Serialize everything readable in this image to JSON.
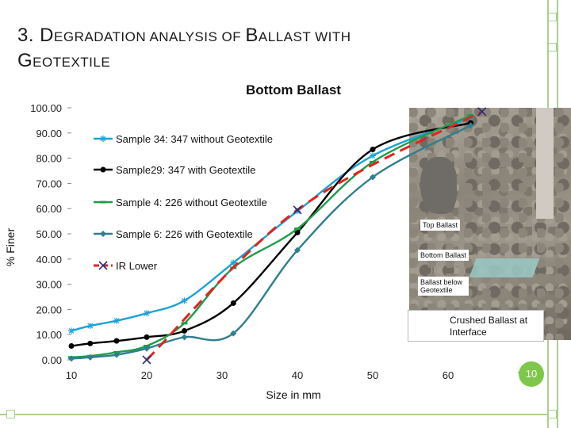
{
  "slide": {
    "title_line1": [
      {
        "text": "3. D",
        "size": "big"
      },
      {
        "text": "EGRADATION ANALYSIS OF ",
        "size": "sm"
      },
      {
        "text": "B",
        "size": "big"
      },
      {
        "text": "ALLAST WITH",
        "size": "sm"
      }
    ],
    "title_line2": [
      {
        "text": "G",
        "size": "big"
      },
      {
        "text": "EOTEXTILE",
        "size": "sm"
      }
    ],
    "page_number": "10",
    "accent_color": "#a9d18e",
    "page_badge_color": "#7fc74a"
  },
  "photo": {
    "labels": [
      "Top Ballast",
      "Bottom Ballast",
      "Ballast below Geotextile"
    ],
    "callout": "Crushed Ballast at Interface"
  },
  "chart_data": {
    "type": "line",
    "title": "Bottom Ballast",
    "xlabel": "Size in mm",
    "ylabel": "% Finer",
    "xlim": [
      10,
      70
    ],
    "ylim": [
      0,
      100
    ],
    "xticks": [
      "10",
      "20",
      "30",
      "40",
      "50",
      "60",
      "70"
    ],
    "yticks": [
      "0.00",
      "10.00",
      "20.00",
      "30.00",
      "40.00",
      "50.00",
      "60.00",
      "70.00",
      "80.00",
      "90.00",
      "100.00"
    ],
    "grid": false,
    "legend_position": "left-middle",
    "series": [
      {
        "name": "Sample 34: 347 without Geotextile",
        "color": "#1aa3d8",
        "dash": "solid",
        "marker": "star",
        "x": [
          10,
          12.5,
          16,
          20,
          25,
          31.5,
          40,
          50,
          63
        ],
        "y": [
          11.5,
          13.5,
          15.5,
          18.5,
          23.5,
          38.5,
          59,
          81,
          96
        ]
      },
      {
        "name": "Sample29: 347 with Geotextile",
        "color": "#000000",
        "dash": "solid",
        "marker": "circle",
        "x": [
          10,
          12.5,
          16,
          20,
          25,
          31.5,
          40,
          50,
          63
        ],
        "y": [
          5.5,
          6.5,
          7.5,
          9,
          11.5,
          22.5,
          50.5,
          83.5,
          94
        ]
      },
      {
        "name": "Sample 4: 226 without Geotextile",
        "color": "#1e9c4b",
        "dash": "solid",
        "marker": "dash",
        "x": [
          10,
          12.5,
          16,
          20,
          25,
          31.5,
          40,
          50,
          63
        ],
        "y": [
          1,
          1.5,
          3,
          5.5,
          14.5,
          36.5,
          52,
          78.5,
          97
        ]
      },
      {
        "name": "Sample 6: 226 with Geotextile",
        "color": "#2f7f8f",
        "dash": "solid",
        "marker": "diamond",
        "x": [
          10,
          12.5,
          16,
          20,
          25,
          31.5,
          40,
          50,
          63
        ],
        "y": [
          0.5,
          1,
          2,
          4.5,
          9,
          10.5,
          43.5,
          72.5,
          93
        ]
      },
      {
        "name": "IR Lower",
        "color": "#e3231f",
        "dash": "dashed",
        "marker": "x",
        "x": [
          20,
          40,
          64.5
        ],
        "y": [
          0,
          59.5,
          98.5
        ]
      }
    ]
  }
}
